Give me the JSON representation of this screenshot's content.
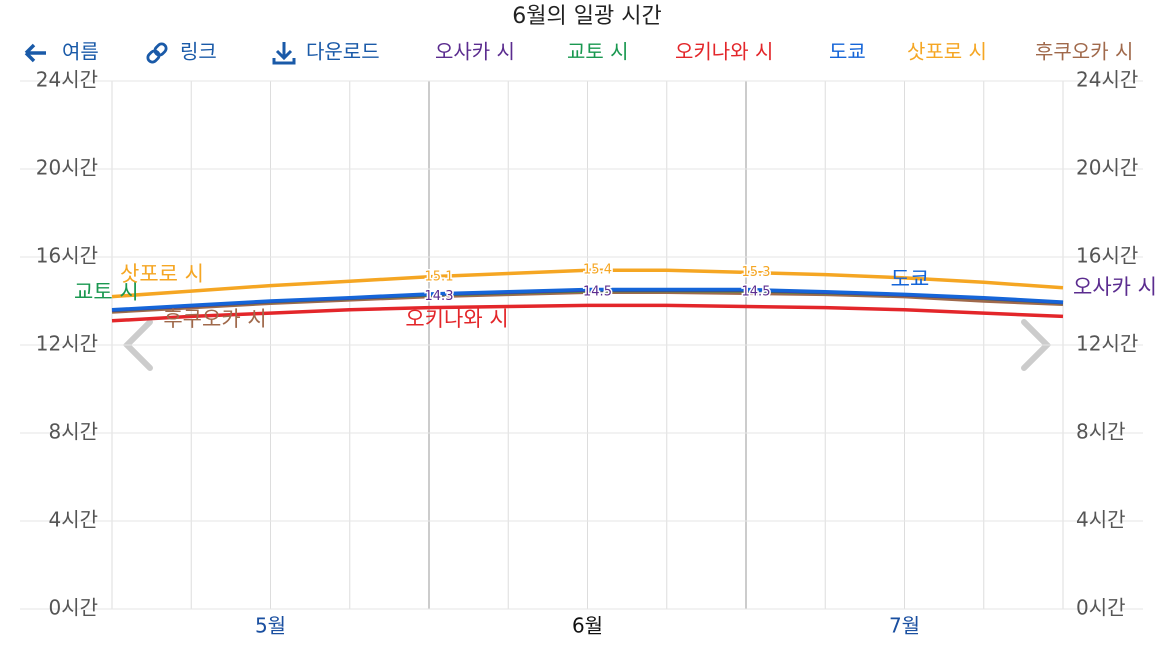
{
  "toolbar": [
    "여름",
    "링크",
    "다운로드"
  ],
  "chart_data": {
    "type": "line",
    "title": "6월의 일광 시간",
    "categories": [
      null,
      null,
      "5월",
      null,
      null,
      null,
      "6월",
      null,
      null,
      null,
      "7월",
      null,
      null
    ],
    "ylim": [
      0,
      24
    ],
    "yticks": [
      {
        "value": 0,
        "label": "0시간"
      },
      {
        "value": 4,
        "label": "4시간"
      },
      {
        "value": 8,
        "label": "8시간"
      },
      {
        "value": 12,
        "label": "12시간"
      },
      {
        "value": 16,
        "label": "16시간"
      },
      {
        "value": 20,
        "label": "20시간"
      },
      {
        "value": 24,
        "label": "24시간"
      }
    ],
    "grid": true,
    "series": [
      {
        "name": "오사카 시",
        "color": "#5b2c8f",
        "values": [
          13.58,
          13.78,
          13.98,
          14.13,
          14.3,
          14.4,
          14.5,
          14.5,
          14.5,
          14.4,
          14.28,
          14.13,
          13.93
        ],
        "value_labels": [
          null,
          null,
          null,
          null,
          "14.3",
          null,
          "14.5",
          null,
          "14.5",
          null,
          null,
          null,
          null
        ]
      },
      {
        "name": "교토 시",
        "color": "#1a9850",
        "values": [
          13.57,
          13.77,
          13.97,
          14.12,
          14.28,
          14.38,
          14.48,
          14.48,
          14.47,
          14.38,
          14.27,
          14.12,
          13.92
        ]
      },
      {
        "name": "오키나와 시",
        "color": "#e3262a",
        "values": [
          13.1,
          13.3,
          13.45,
          13.6,
          13.7,
          13.75,
          13.8,
          13.8,
          13.75,
          13.7,
          13.6,
          13.45,
          13.3
        ]
      },
      {
        "name": "도쿄",
        "color": "#1565d8",
        "values": [
          13.6,
          13.8,
          14.0,
          14.15,
          14.32,
          14.42,
          14.52,
          14.52,
          14.52,
          14.42,
          14.3,
          14.15,
          13.95
        ]
      },
      {
        "name": "삿포로 시",
        "color": "#f5a623",
        "values": [
          14.2,
          14.45,
          14.7,
          14.9,
          15.1,
          15.25,
          15.4,
          15.4,
          15.3,
          15.2,
          15.05,
          14.85,
          14.6
        ],
        "value_labels": [
          null,
          null,
          null,
          null,
          "15.1",
          null,
          "15.4",
          null,
          "15.3",
          null,
          null,
          null,
          null
        ]
      },
      {
        "name": "후쿠오카 시",
        "color": "#a0694b",
        "values": [
          13.5,
          13.7,
          13.9,
          14.05,
          14.2,
          14.3,
          14.4,
          14.4,
          14.35,
          14.3,
          14.2,
          14.0,
          13.85
        ]
      }
    ]
  }
}
